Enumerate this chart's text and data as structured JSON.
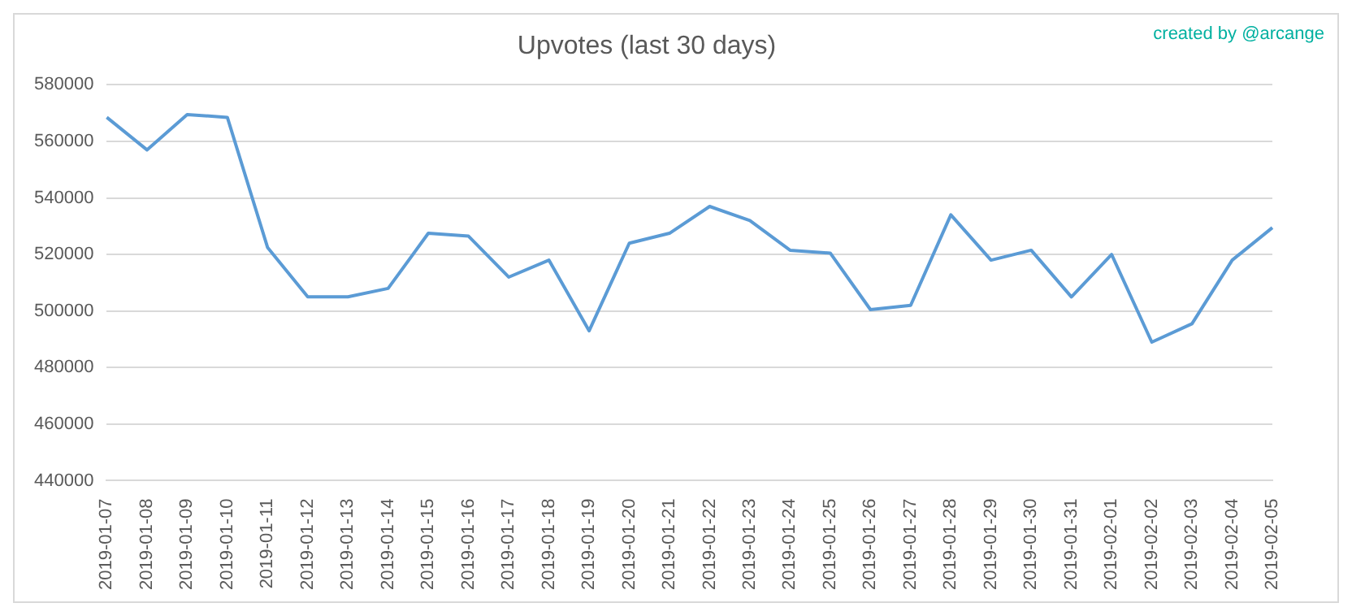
{
  "chart_data": {
    "type": "line",
    "title": "Upvotes (last 30 days)",
    "annotations": [
      "created by @arcange"
    ],
    "categories": [
      "2019-01-07",
      "2019-01-08",
      "2019-01-09",
      "2019-01-10",
      "2019-01-11",
      "2019-01-12",
      "2019-01-13",
      "2019-01-14",
      "2019-01-15",
      "2019-01-16",
      "2019-01-17",
      "2019-01-18",
      "2019-01-19",
      "2019-01-20",
      "2019-01-21",
      "2019-01-22",
      "2019-01-23",
      "2019-01-24",
      "2019-01-25",
      "2019-01-26",
      "2019-01-27",
      "2019-01-28",
      "2019-01-29",
      "2019-01-30",
      "2019-01-31",
      "2019-02-01",
      "2019-02-02",
      "2019-02-03",
      "2019-02-04",
      "2019-02-05"
    ],
    "series": [
      {
        "color": "#5b9bd5",
        "values": [
          568500,
          557000,
          569500,
          568500,
          522500,
          505000,
          505000,
          508000,
          527500,
          526500,
          512000,
          518000,
          493000,
          524000,
          527500,
          537000,
          532000,
          521500,
          520500,
          500500,
          502000,
          534000,
          518000,
          521500,
          505000,
          520000,
          489000,
          495500,
          518000,
          529500
        ]
      }
    ],
    "ylim": [
      440000,
      580000
    ],
    "yticks": [
      440000,
      460000,
      480000,
      500000,
      520000,
      540000,
      560000,
      580000
    ],
    "grid": "y",
    "legend": false,
    "marker": "none",
    "line_style": "solid"
  }
}
